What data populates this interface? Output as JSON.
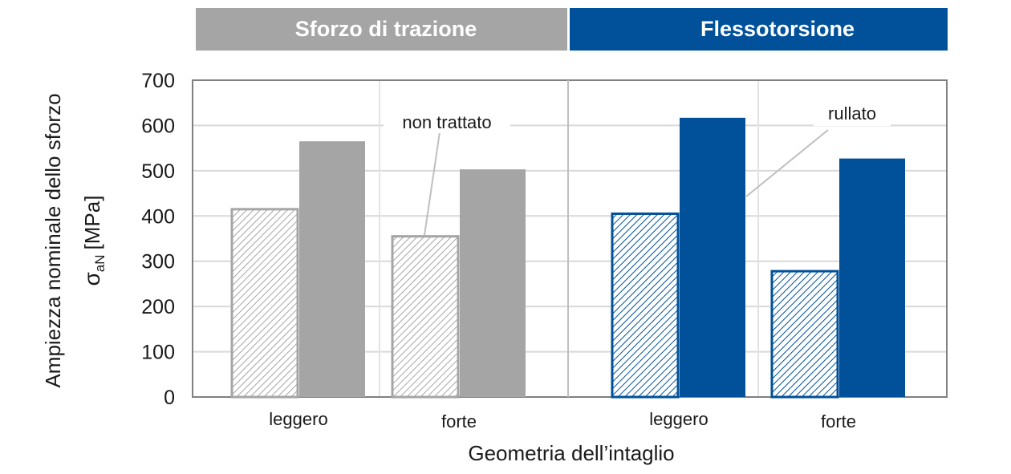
{
  "chart_data": {
    "type": "bar",
    "groups": [
      {
        "label": "Sforzo di trazione",
        "color": "#a5a5a5",
        "categories": [
          "leggero",
          "forte"
        ]
      },
      {
        "label": "Flessotorsione",
        "color": "#00519a",
        "categories": [
          "leggero",
          "forte"
        ]
      }
    ],
    "series": [
      {
        "name": "non trattato",
        "values": [
          415,
          355,
          405,
          278
        ]
      },
      {
        "name": "rullato",
        "values": [
          565,
          503,
          617,
          527
        ]
      }
    ],
    "categories": [
      "leggero",
      "forte",
      "leggero",
      "forte"
    ],
    "xlabel": "Geometria dell’intaglio",
    "ylabel": "Ampiezza nominale dello sforzo",
    "ylabel_symbol": "σ",
    "ylabel_subscript": "aN",
    "ylabel_unit": "[MPa]",
    "ylim": [
      0,
      700
    ],
    "yticks": [
      0,
      100,
      200,
      300,
      400,
      500,
      600,
      700
    ],
    "grid": true,
    "annotations": [
      {
        "text": "non trattato"
      },
      {
        "text": "rullato"
      }
    ]
  }
}
